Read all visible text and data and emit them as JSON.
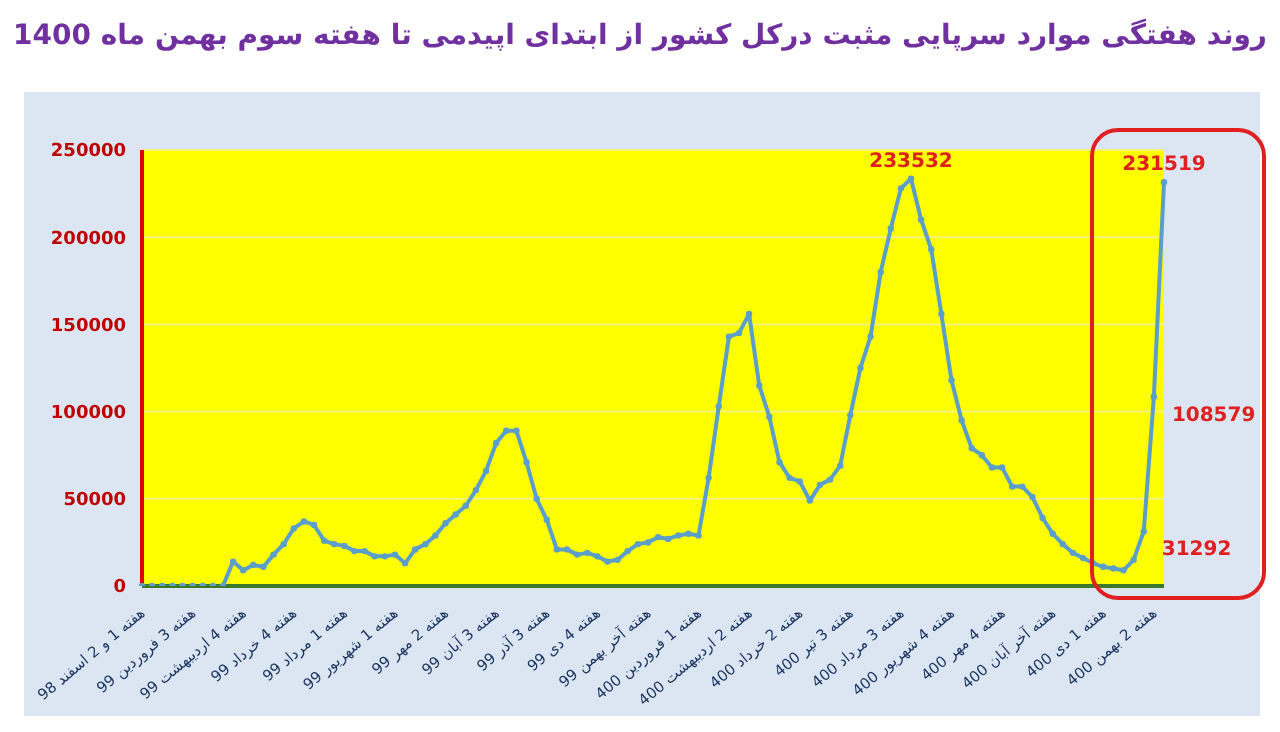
{
  "chart_data": {
    "type": "line",
    "title": "روند هفتگی موارد سرپایی مثبت درکل کشور از ابتدای اپیدمی تا هفته سوم بهمن ماه 1400",
    "categories": [
      "هفته 1 و 2 اسفند 98",
      null,
      null,
      null,
      null,
      "هفته 3 فروردین 99",
      null,
      null,
      null,
      null,
      "هفته 4 اردیبهشت 99",
      null,
      null,
      null,
      null,
      "هفته 4 خرداد 99",
      null,
      null,
      null,
      null,
      "هفته 1 مرداد 99",
      null,
      null,
      null,
      null,
      "هفته 1 شهریور 99",
      null,
      null,
      null,
      null,
      "هفته 2 مهر 99",
      null,
      null,
      null,
      null,
      "هفته 3 آبان 99",
      null,
      null,
      null,
      null,
      "هفته 3 آذر 99",
      null,
      null,
      null,
      null,
      "هفته 4 دی 99",
      null,
      null,
      null,
      null,
      "هفته آخر بهمن 99",
      null,
      null,
      null,
      null,
      "هفته 1 فروردین 400",
      null,
      null,
      null,
      null,
      "هفته 2 اردیبهشت 400",
      null,
      null,
      null,
      null,
      "هفته 2 خرداد 400",
      null,
      null,
      null,
      null,
      "هفته 3 تیر 400",
      null,
      null,
      null,
      null,
      "هفته 3 مرداد 400",
      null,
      null,
      null,
      null,
      "هفته 4 شهریور 400",
      null,
      null,
      null,
      null,
      "هفته 4 مهر 400",
      null,
      null,
      null,
      null,
      "هفته آخر آبان 400",
      null,
      null,
      null,
      null,
      "هفته 1 دی 400",
      null,
      null,
      null,
      null,
      "هفته 2 بهمن 400",
      null
    ],
    "series": [
      {
        "color": "#5b9ec9",
        "values": [
          0,
          0,
          0,
          0,
          0,
          0,
          0,
          0,
          0,
          14000,
          9000,
          12000,
          11000,
          18000,
          24000,
          33000,
          37000,
          35000,
          26000,
          24000,
          23000,
          20000,
          20000,
          17000,
          17000,
          18000,
          13000,
          21000,
          24000,
          29000,
          36000,
          41000,
          46000,
          55000,
          66000,
          82000,
          89000,
          89000,
          71000,
          50000,
          38000,
          21000,
          21000,
          18000,
          19000,
          17000,
          14000,
          15000,
          20000,
          24000,
          25000,
          28000,
          27000,
          29000,
          30000,
          29000,
          62000,
          103000,
          143000,
          145000,
          156000,
          115000,
          97000,
          71000,
          62000,
          60000,
          49000,
          58000,
          61000,
          69000,
          98000,
          125000,
          143000,
          180000,
          205000,
          228000,
          233532,
          210000,
          193000,
          156000,
          118000,
          95000,
          79000,
          75000,
          68000,
          68000,
          57000,
          57000,
          51000,
          39000,
          30000,
          24000,
          19000,
          16000,
          13000,
          11000,
          10000,
          9000,
          15000,
          31292,
          108579,
          231519
        ],
        "value_labels": [
          null,
          null,
          null,
          null,
          null,
          null,
          null,
          null,
          null,
          null,
          null,
          null,
          null,
          null,
          null,
          null,
          null,
          null,
          null,
          null,
          null,
          null,
          null,
          null,
          null,
          null,
          null,
          null,
          null,
          null,
          null,
          null,
          null,
          null,
          null,
          null,
          null,
          null,
          null,
          null,
          null,
          null,
          null,
          null,
          null,
          null,
          null,
          null,
          null,
          null,
          null,
          null,
          null,
          null,
          null,
          null,
          null,
          null,
          null,
          null,
          null,
          null,
          null,
          null,
          null,
          null,
          null,
          null,
          null,
          null,
          null,
          null,
          null,
          null,
          null,
          null,
          "233532",
          null,
          null,
          null,
          null,
          null,
          null,
          null,
          null,
          null,
          null,
          null,
          null,
          null,
          null,
          null,
          null,
          null,
          null,
          null,
          null,
          null,
          null,
          "31292",
          "108579",
          "231519"
        ]
      }
    ],
    "ylim": [
      0,
      250000
    ],
    "yticks": [
      0,
      50000,
      100000,
      150000,
      200000,
      250000
    ],
    "grid": "y",
    "marker": "circle",
    "legend": false
  }
}
